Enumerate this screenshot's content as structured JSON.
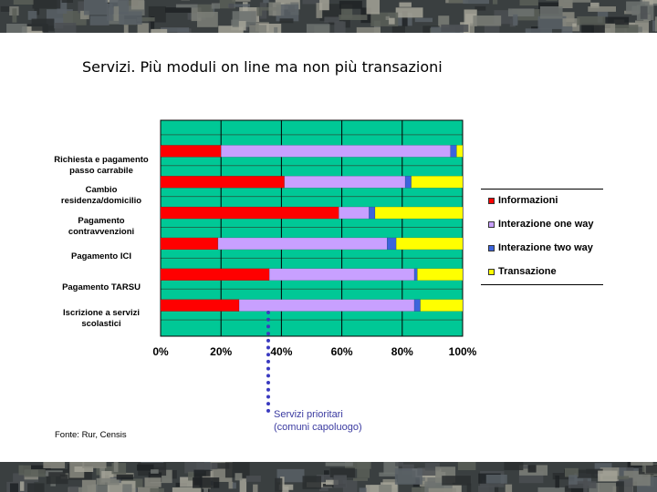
{
  "slide": {
    "title": "Servizi. Più moduli on line ma non più transazioni",
    "source": "Fonte: Rur, Censis",
    "annotation": [
      "Servizi prioritari",
      "(comuni capoluogo)"
    ]
  },
  "colors": {
    "plot_background": "#00c896",
    "informazioni": "#ff0000",
    "interazione_one_way": "#c8a0ff",
    "interazione_two_way": "#3c64dc",
    "transazione": "#ffff00",
    "annotation": "#3a3ac0"
  },
  "chart_data": {
    "type": "bar",
    "orientation": "horizontal",
    "stacked": true,
    "categories": [
      "Richiesta e pagamento\npasso carrabile",
      "Cambio\nresidenza/domicilio",
      "Pagamento\ncontravvenzioni",
      "Pagamento ICI",
      "Pagamento TARSU",
      "Iscrizione a servizi\nscolastici"
    ],
    "series": [
      {
        "name": "Informazioni",
        "values": [
          20,
          41,
          59,
          19,
          36,
          26
        ]
      },
      {
        "name": "Interazione one way",
        "values": [
          76,
          40,
          10,
          56,
          48,
          58
        ]
      },
      {
        "name": "Interazione two way",
        "values": [
          2,
          2,
          2,
          3,
          1,
          2
        ]
      },
      {
        "name": "Transazione",
        "values": [
          2,
          17,
          29,
          22,
          15,
          14
        ]
      }
    ],
    "xlim": [
      0,
      100
    ],
    "x_ticks": [
      "0%",
      "20%",
      "40%",
      "60%",
      "80%",
      "100%"
    ],
    "grid": true,
    "legend": {
      "position": "right",
      "entries": [
        "Informazioni",
        "Interazione one way",
        "Interazione two way",
        "Transazione"
      ]
    },
    "xlabel": "",
    "ylabel": ""
  }
}
